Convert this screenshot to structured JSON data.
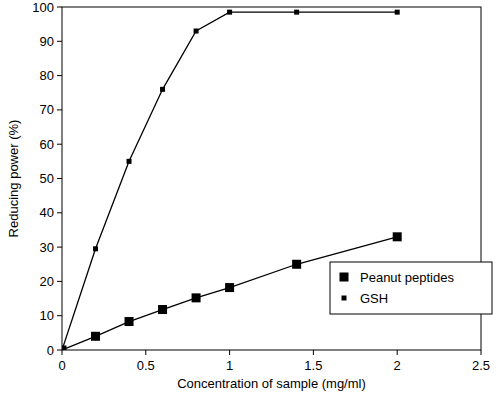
{
  "chart_data": {
    "type": "line",
    "x_label": "Concentration of sample (mg/ml)",
    "y_label": "Reducing power (%)",
    "x": [
      0,
      0.2,
      0.4,
      0.6,
      0.8,
      1.0,
      1.4,
      2.0
    ],
    "series": [
      {
        "name": "Peanut peptides",
        "color": "#000000",
        "marker": "square",
        "line_style": "solid",
        "values": [
          0,
          4,
          8.3,
          11.8,
          15.2,
          18.2,
          25,
          33
        ]
      },
      {
        "name": "GSH",
        "color": "#000000",
        "marker": "square",
        "line_style": "solid",
        "values": [
          0,
          29.5,
          55,
          76,
          93,
          98.5,
          98.5,
          98.5
        ]
      }
    ],
    "xlim": [
      0,
      2.5
    ],
    "xticks": [
      0,
      0.5,
      1,
      1.5,
      2,
      2.5
    ],
    "ylim": [
      0,
      100
    ],
    "yticks": [
      0,
      10,
      20,
      30,
      40,
      50,
      60,
      70,
      80,
      90,
      100
    ],
    "grid": false,
    "legend": "lower right"
  }
}
